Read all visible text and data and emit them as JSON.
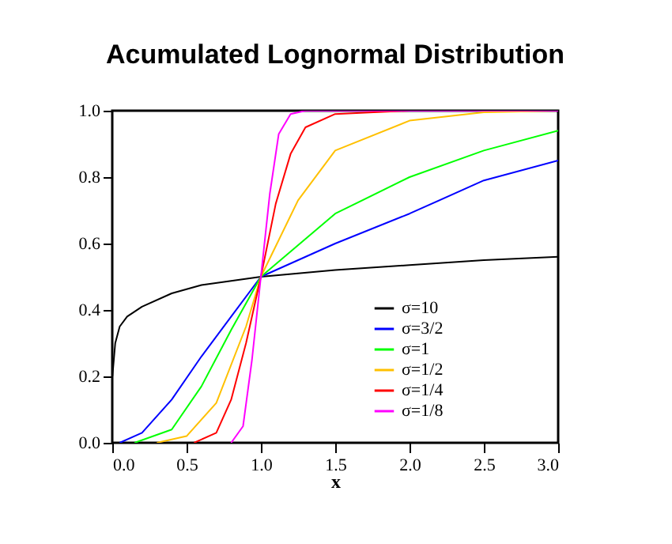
{
  "chart_data": {
    "type": "line",
    "title": "Acumulated Lognormal Distribution",
    "xlabel": "x",
    "xlim": [
      0,
      3
    ],
    "ylim": [
      0,
      1
    ],
    "xticks": [
      {
        "value": 0,
        "label": "0.0"
      },
      {
        "value": 0.5,
        "label": "0.5"
      },
      {
        "value": 1,
        "label": "1.0"
      },
      {
        "value": 1.5,
        "label": "1.5"
      },
      {
        "value": 2,
        "label": "2.0"
      },
      {
        "value": 2.5,
        "label": "2.5"
      },
      {
        "value": 3,
        "label": "3.0"
      }
    ],
    "yticks": [
      {
        "value": 0,
        "label": "0.0"
      },
      {
        "value": 0.2,
        "label": "0.2"
      },
      {
        "value": 0.4,
        "label": "0.4"
      },
      {
        "value": 0.6,
        "label": "0.6"
      },
      {
        "value": 0.8,
        "label": "0.8"
      },
      {
        "value": 1,
        "label": "1.0"
      }
    ],
    "legend": "bottom right",
    "grid": false,
    "marker": "none",
    "line_style": "solid",
    "series": [
      {
        "name": "σ=10",
        "color": "#000000",
        "x": [
          0.001,
          0.02,
          0.05,
          0.1,
          0.2,
          0.4,
          0.6,
          1.0,
          1.5,
          2.0,
          2.5,
          3.0
        ],
        "values": [
          0.2,
          0.3,
          0.35,
          0.38,
          0.41,
          0.45,
          0.475,
          0.5,
          0.52,
          0.535,
          0.55,
          0.56
        ]
      },
      {
        "name": "σ=3/2",
        "color": "#0000ff",
        "x": [
          0.05,
          0.2,
          0.4,
          0.6,
          0.8,
          1.0,
          1.5,
          2.0,
          2.5,
          3.0
        ],
        "values": [
          0,
          0.03,
          0.13,
          0.26,
          0.38,
          0.5,
          0.6,
          0.69,
          0.79,
          0.85
        ]
      },
      {
        "name": "σ=1",
        "color": "#00ff00",
        "x": [
          0.15,
          0.4,
          0.6,
          0.8,
          1.0,
          1.5,
          2.0,
          2.5,
          3.0
        ],
        "values": [
          0,
          0.04,
          0.17,
          0.34,
          0.5,
          0.69,
          0.8,
          0.88,
          0.94
        ]
      },
      {
        "name": "σ=1/2",
        "color": "#ffc000",
        "x": [
          0.3,
          0.5,
          0.7,
          0.9,
          1.0,
          1.25,
          1.5,
          2.0,
          2.5,
          3.0
        ],
        "values": [
          0,
          0.02,
          0.12,
          0.35,
          0.5,
          0.73,
          0.88,
          0.97,
          0.995,
          1.0
        ]
      },
      {
        "name": "σ=1/4",
        "color": "#ff0000",
        "x": [
          0.55,
          0.7,
          0.8,
          0.9,
          1.0,
          1.1,
          1.2,
          1.3,
          1.5,
          2.0
        ],
        "values": [
          0,
          0.03,
          0.13,
          0.3,
          0.5,
          0.72,
          0.87,
          0.95,
          0.99,
          1.0
        ]
      },
      {
        "name": "σ=1/8",
        "color": "#ff00ff",
        "x": [
          0.8,
          0.88,
          0.94,
          1.0,
          1.06,
          1.12,
          1.2,
          1.3,
          3.0
        ],
        "values": [
          0,
          0.05,
          0.25,
          0.5,
          0.75,
          0.93,
          0.99,
          1.0,
          1.0
        ]
      }
    ]
  }
}
